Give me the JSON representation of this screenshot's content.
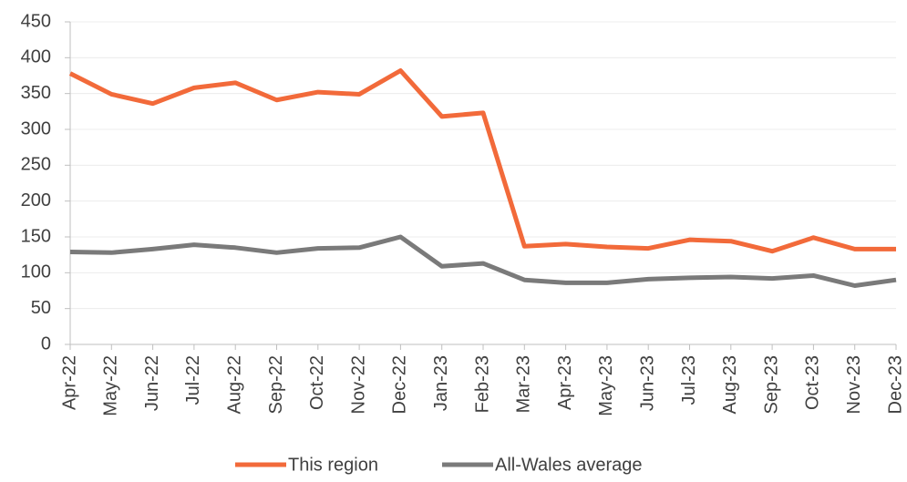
{
  "chart_data": {
    "type": "line",
    "categories": [
      "Apr-22",
      "May-22",
      "Jun-22",
      "Jul-22",
      "Aug-22",
      "Sep-22",
      "Oct-22",
      "Nov-22",
      "Dec-22",
      "Jan-23",
      "Feb-23",
      "Mar-23",
      "Apr-23",
      "May-23",
      "Jun-23",
      "Jul-23",
      "Aug-23",
      "Sep-23",
      "Oct-23",
      "Nov-23",
      "Dec-23"
    ],
    "series": [
      {
        "name": "This region",
        "color": "#f26a3a",
        "values": [
          378,
          349,
          336,
          358,
          365,
          341,
          352,
          349,
          382,
          318,
          323,
          137,
          140,
          136,
          134,
          146,
          144,
          130,
          149,
          133,
          133
        ]
      },
      {
        "name": "All-Wales average",
        "color": "#7a7a7a",
        "values": [
          129,
          128,
          133,
          139,
          135,
          128,
          134,
          135,
          150,
          109,
          113,
          90,
          86,
          86,
          91,
          93,
          94,
          92,
          96,
          82,
          90
        ]
      }
    ],
    "ylim": [
      0,
      450
    ],
    "yticks": [
      0,
      50,
      100,
      150,
      200,
      250,
      300,
      350,
      400,
      450
    ],
    "grid": true
  }
}
